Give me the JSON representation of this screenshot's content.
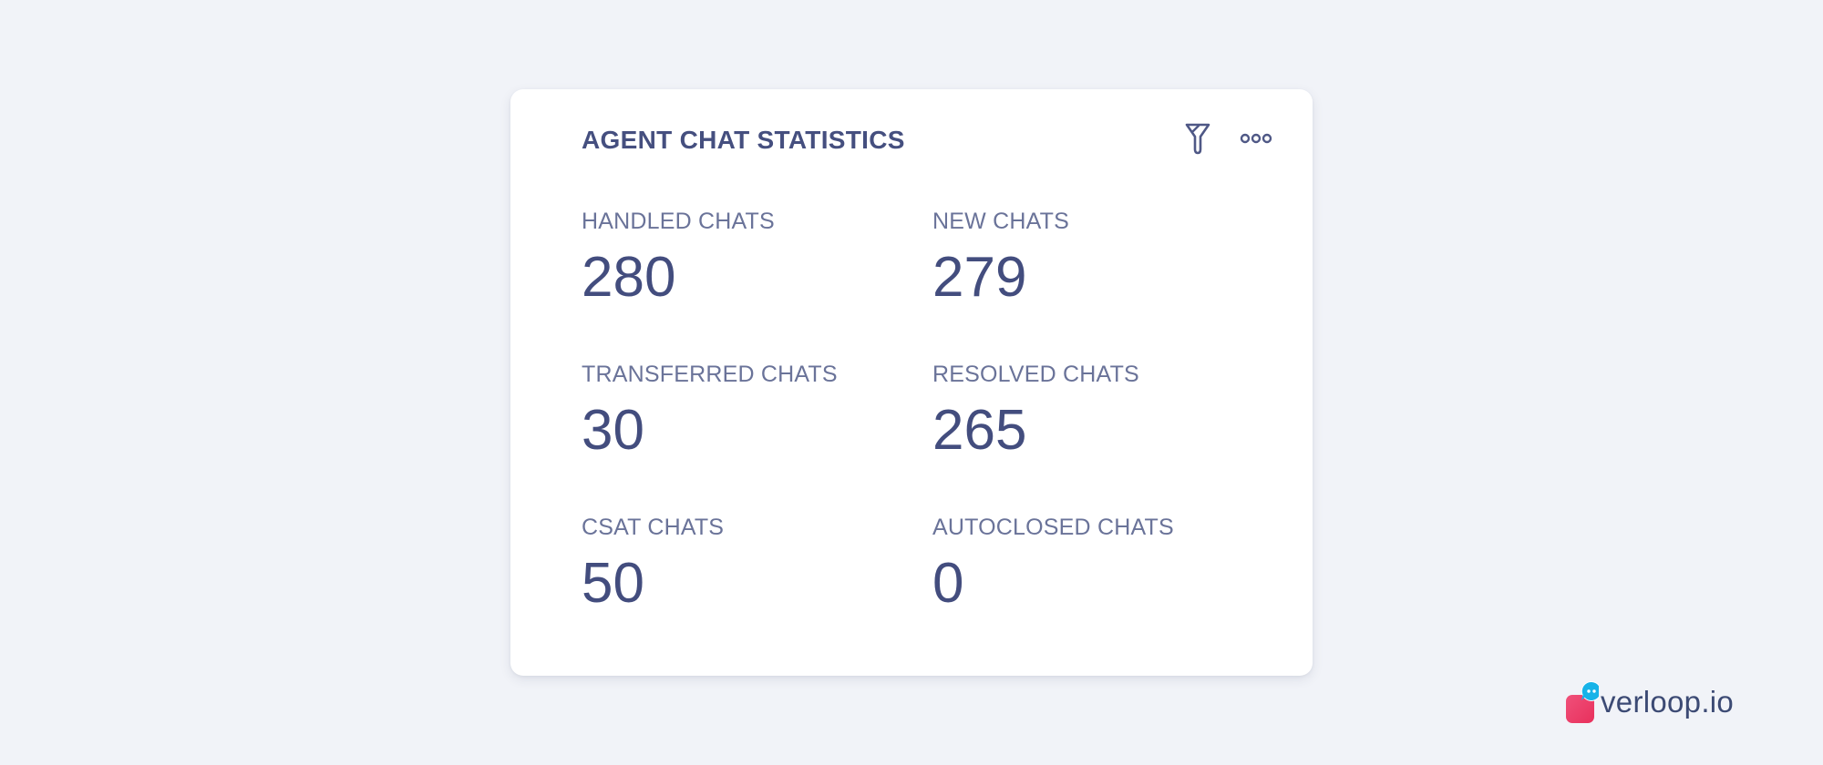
{
  "widget": {
    "title": "AGENT CHAT STATISTICS",
    "actions": {
      "filter_icon": "filter-icon",
      "more_icon": "more-horizontal-icon"
    },
    "stats": [
      {
        "label": "HANDLED CHATS",
        "value": "280"
      },
      {
        "label": "NEW CHATS",
        "value": "279"
      },
      {
        "label": "TRANSFERRED CHATS",
        "value": "30"
      },
      {
        "label": "RESOLVED CHATS",
        "value": "265"
      },
      {
        "label": "CSAT CHATS",
        "value": "50"
      },
      {
        "label": "AUTOCLOSED CHATS",
        "value": "0"
      }
    ]
  },
  "brand": {
    "name": "verloop.io",
    "colors": {
      "mark_primary": "#ee3f6c",
      "mark_bubble": "#17b3e8",
      "text": "#3c4a74"
    }
  },
  "colors": {
    "background": "#f1f3f8",
    "card": "#ffffff",
    "title": "#454f7f",
    "label": "#6a7399",
    "value": "#434d7e"
  }
}
